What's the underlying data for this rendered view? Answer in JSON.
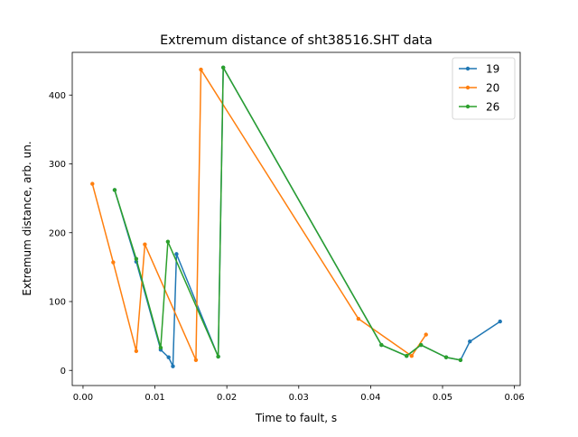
{
  "chart_data": {
    "type": "line",
    "title": "Extremum distance of sht38516.SHT data",
    "xlabel": "Time to fault, s",
    "ylabel": "Extremum distance, arb. un.",
    "xlim": [
      -0.0015,
      0.0608
    ],
    "ylim": [
      -22,
      462
    ],
    "xticks": [
      0.0,
      0.01,
      0.02,
      0.03,
      0.04,
      0.05,
      0.06
    ],
    "xtick_labels": [
      "0.00",
      "0.01",
      "0.02",
      "0.03",
      "0.04",
      "0.05",
      "0.06"
    ],
    "yticks": [
      0,
      100,
      200,
      300,
      400
    ],
    "ytick_labels": [
      "0",
      "100",
      "200",
      "300",
      "400"
    ],
    "grid": false,
    "legend_position": "top-right",
    "series": [
      {
        "name": "19",
        "color": "#1f77b4",
        "x": [
          0.0044,
          0.0074,
          0.0108,
          0.0119,
          0.0125,
          0.013,
          0.0188,
          0.0195,
          0.0415,
          0.045,
          0.047,
          0.0505,
          0.0525,
          0.0538,
          0.058
        ],
        "y": [
          262,
          158,
          30,
          19,
          6,
          169,
          20,
          440,
          37,
          21,
          37,
          19,
          15,
          42,
          71
        ]
      },
      {
        "name": "20",
        "color": "#ff7f0e",
        "x": [
          0.0013,
          0.0042,
          0.0074,
          0.0086,
          0.0157,
          0.0164,
          0.0383,
          0.0457,
          0.0477
        ],
        "y": [
          271,
          157,
          28,
          183,
          15,
          437,
          75,
          21,
          52
        ]
      },
      {
        "name": "26",
        "color": "#2ca02c",
        "x": [
          0.0044,
          0.0074,
          0.0108,
          0.0118,
          0.0188,
          0.0195,
          0.0415,
          0.045,
          0.047,
          0.0505,
          0.0525
        ],
        "y": [
          262,
          162,
          33,
          187,
          20,
          440,
          37,
          21,
          37,
          19,
          15
        ]
      }
    ]
  }
}
